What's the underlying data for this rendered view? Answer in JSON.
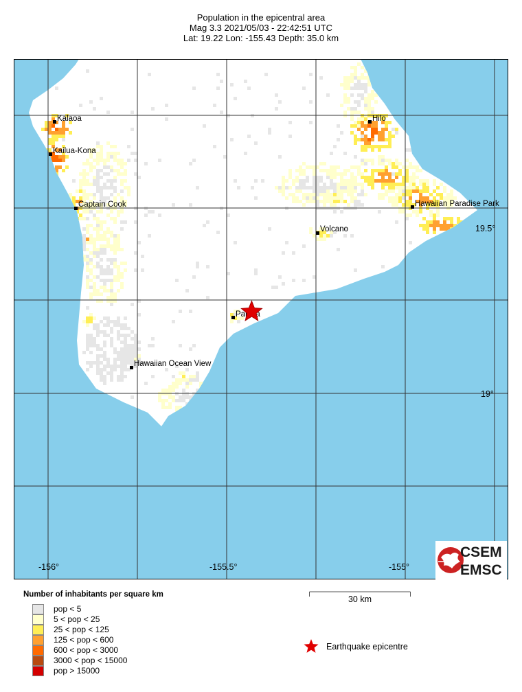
{
  "title": {
    "line1": "Population in the epicentral area",
    "line2": "Mag 3.3  2021/05/03 - 22:42:51 UTC",
    "line3": "Lat: 19.22    Lon: -155.43     Depth:  35.0 km"
  },
  "map": {
    "colors": {
      "ocean": "#87ceeb",
      "land": "#ffffff",
      "grid": "#222222"
    },
    "lon_ticks": [
      "-156°",
      "-155.5°",
      "-155°"
    ],
    "lat_ticks": [
      "19.5°",
      "19°"
    ],
    "places": [
      {
        "name": "Kalaoa"
      },
      {
        "name": "Hilo"
      },
      {
        "name": "Kailua-Kona"
      },
      {
        "name": "Captain Cook"
      },
      {
        "name": "Hawaiian Paradise Park"
      },
      {
        "name": "Volcano"
      },
      {
        "name": "Pahala"
      },
      {
        "name": "Hawaiian Ocean View"
      }
    ],
    "epicentre": {
      "lat": 19.22,
      "lon": -155.43,
      "icon": "red-star-icon"
    }
  },
  "legend": {
    "title": "Number of inhabitants per square km",
    "classes": [
      {
        "label": "pop < 5",
        "color": "#e6e6e6"
      },
      {
        "label": "5 < pop < 25",
        "color": "#ffffcc"
      },
      {
        "label": "25 < pop < 125",
        "color": "#ffee55"
      },
      {
        "label": "125 < pop < 600",
        "color": "#ffa030"
      },
      {
        "label": "600 < pop < 3000",
        "color": "#ff6a00"
      },
      {
        "label": "3000 < pop < 15000",
        "color": "#b84a10"
      },
      {
        "label": "pop > 15000",
        "color": "#d40000"
      }
    ],
    "epicentre_label": "Earthquake epicentre"
  },
  "scale_bar": {
    "label": "30 km"
  },
  "logo": {
    "line1": "CSEM",
    "line2": "EMSC"
  }
}
